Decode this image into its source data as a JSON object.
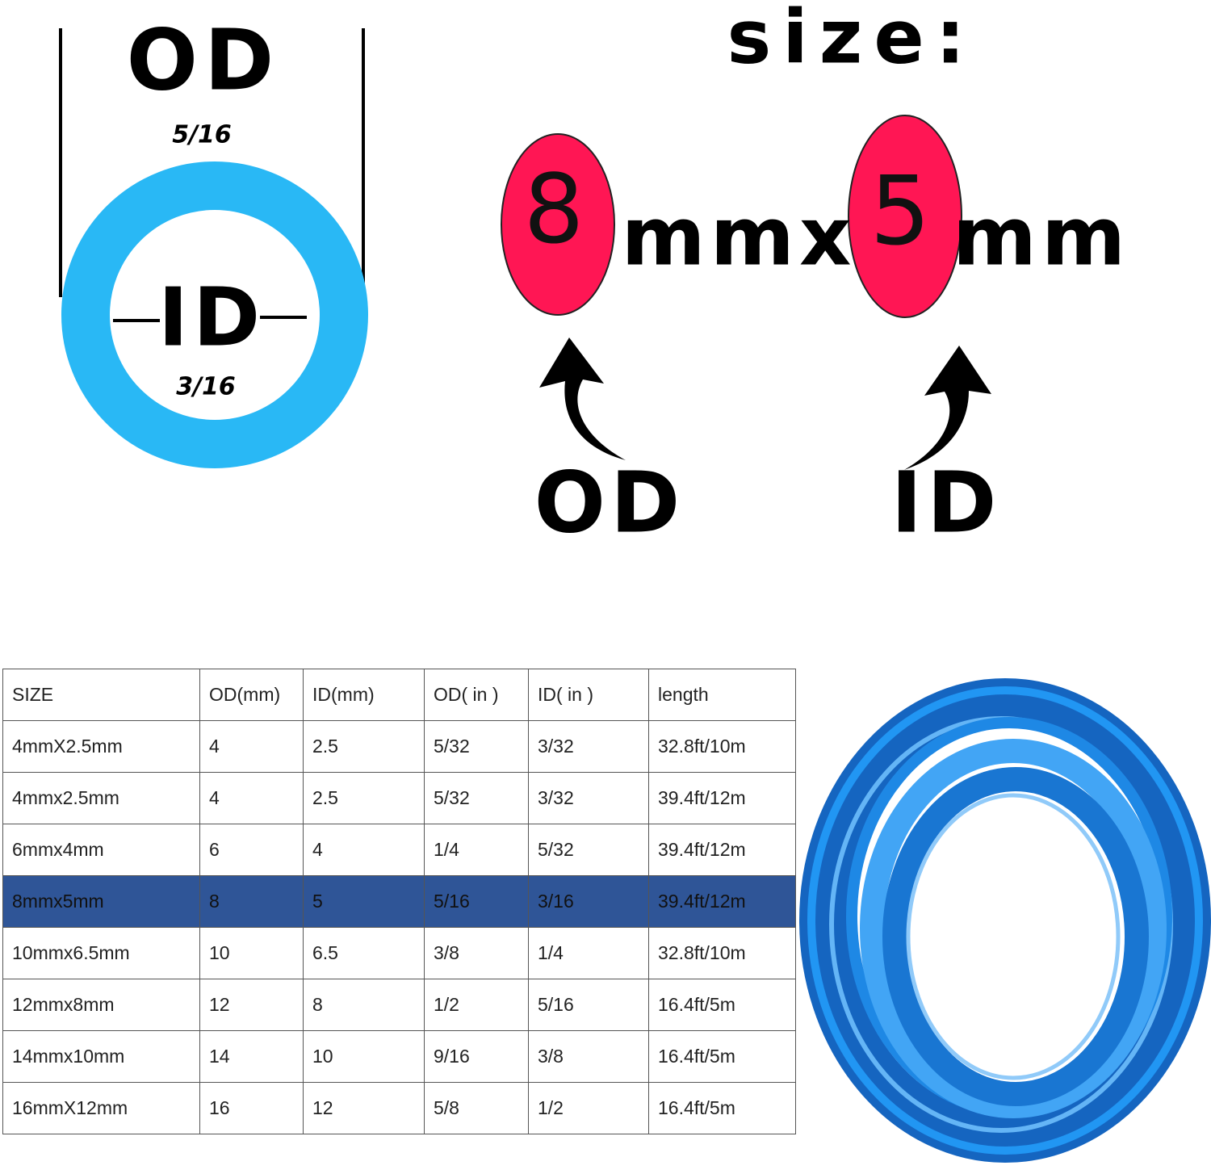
{
  "tube_diagram": {
    "od_label": "OD",
    "od_size": "5/16",
    "id_label": "ID",
    "id_size": "3/16"
  },
  "size_diagram": {
    "title": "size:",
    "od_value": "8",
    "separator": "mmx",
    "id_value": "5",
    "unit": "mm",
    "od_caption": "OD",
    "id_caption": "ID"
  },
  "table": {
    "header": [
      "SIZE",
      "OD(mm)",
      "ID(mm)",
      "OD( in )",
      "ID( in )",
      "length"
    ],
    "rows": [
      [
        "4mmX2.5mm",
        "4",
        "2.5",
        "5/32",
        "3/32",
        "32.8ft/10m"
      ],
      [
        "4mmx2.5mm",
        "4",
        "2.5",
        "5/32",
        "3/32",
        "39.4ft/12m"
      ],
      [
        "6mmx4mm",
        "6",
        "4",
        "1/4",
        "5/32",
        "39.4ft/12m"
      ],
      [
        "8mmx5mm",
        "8",
        "5",
        "5/16",
        "3/16",
        "39.4ft/12m"
      ],
      [
        "10mmx6.5mm",
        "10",
        "6.5",
        "3/8",
        "1/4",
        "32.8ft/10m"
      ],
      [
        "12mmx8mm",
        "12",
        "8",
        "1/2",
        "5/16",
        "16.4ft/5m"
      ],
      [
        "14mmx10mm",
        "14",
        "10",
        "9/16",
        "3/8",
        "16.4ft/5m"
      ],
      [
        "16mmX12mm",
        "16",
        "12",
        "5/8",
        "1/2",
        "16.4ft/5m"
      ]
    ],
    "highlighted_row": 3
  }
}
